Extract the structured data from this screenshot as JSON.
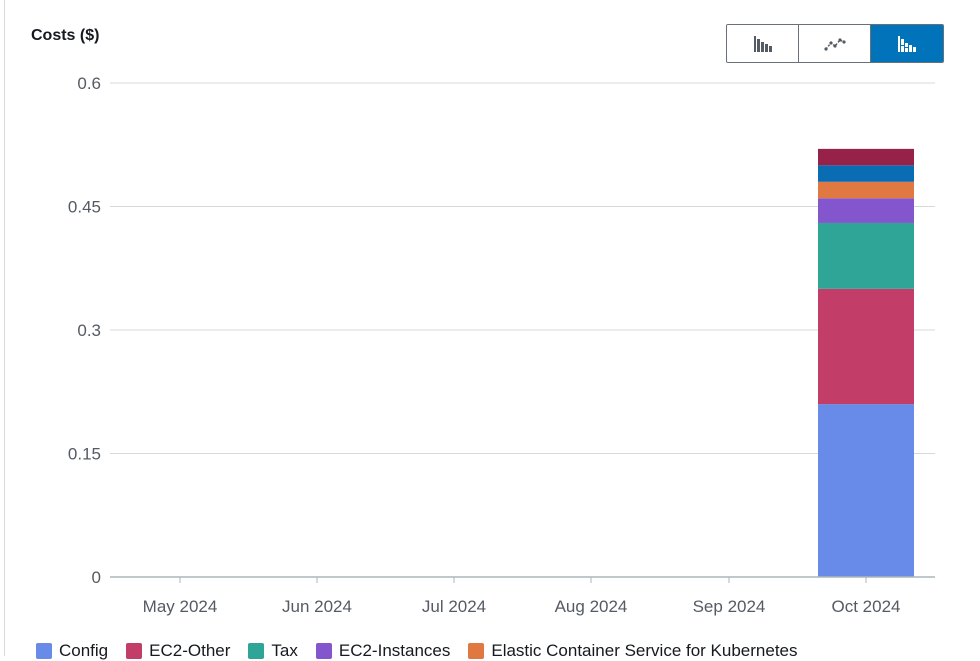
{
  "toolbar": {
    "buttons": [
      {
        "icon": "bar-chart-icon",
        "active": false
      },
      {
        "icon": "line-chart-icon",
        "active": false
      },
      {
        "icon": "stacked-bar-chart-icon",
        "active": true
      }
    ]
  },
  "chart_data": {
    "type": "bar",
    "stacked": true,
    "ylabel": "Costs ($)",
    "ylim": [
      0,
      0.6
    ],
    "yticks": [
      "0",
      "0.15",
      "0.3",
      "0.45",
      "0.6"
    ],
    "ytick_values": [
      0,
      0.15,
      0.3,
      0.45,
      0.6
    ],
    "categories": [
      "May 2024",
      "Jun 2024",
      "Jul 2024",
      "Aug 2024",
      "Sep 2024",
      "Oct 2024"
    ],
    "grid": true,
    "legend_position": "bottom",
    "series": [
      {
        "name": "Config",
        "color": "#688ae8",
        "values": [
          0,
          0,
          0,
          0,
          0,
          0.21
        ]
      },
      {
        "name": "EC2-Other",
        "color": "#c33d69",
        "values": [
          0,
          0,
          0,
          0,
          0,
          0.14
        ]
      },
      {
        "name": "Tax",
        "color": "#2ea597",
        "values": [
          0,
          0,
          0,
          0,
          0,
          0.08
        ]
      },
      {
        "name": "EC2-Instances",
        "color": "#8456ce",
        "values": [
          0,
          0,
          0,
          0,
          0,
          0.03
        ]
      },
      {
        "name": "Elastic Container Service for Kubernetes",
        "color": "#e07941",
        "values": [
          0,
          0,
          0,
          0,
          0,
          0.02
        ]
      },
      {
        "color": "#0a6cb3",
        "values": [
          0,
          0,
          0,
          0,
          0,
          0.02
        ]
      },
      {
        "color": "#962249",
        "values": [
          0,
          0,
          0,
          0,
          0,
          0.02
        ]
      }
    ]
  }
}
